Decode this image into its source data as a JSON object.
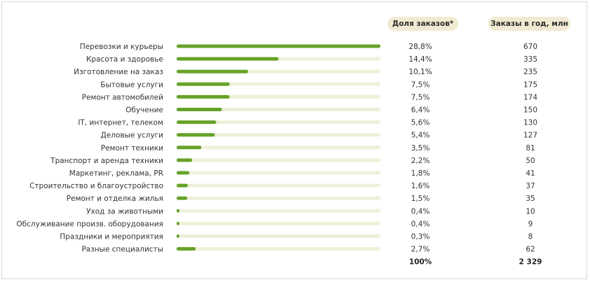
{
  "header": {
    "share_label": "Доля заказов*",
    "orders_label": "Заказы в год, млн"
  },
  "chart_data": {
    "type": "bar",
    "orientation": "horizontal",
    "categories": [
      "Перевозки и курьеры",
      "Красота и здоровье",
      "Изготовление на заказ",
      "Бытовые услуги",
      "Ремонт автомобилей",
      "Обучение",
      "IT, интернет, телеком",
      "Деловые услуги",
      "Ремонт техники",
      "Транспорт и аренда техники",
      "Маркетинг, реклама, PR",
      "Строительство и благоустройство",
      "Ремонт и отделка жилья",
      "Уход за животными",
      "Обслуживание произв. оборудования",
      "Праздники и мероприятия",
      "Разные специалисты"
    ],
    "values": [
      28.8,
      14.4,
      10.1,
      7.5,
      7.5,
      6.4,
      5.6,
      5.4,
      3.5,
      2.2,
      1.8,
      1.6,
      1.5,
      0.4,
      0.4,
      0.3,
      2.7
    ],
    "share_labels": [
      "28,8%",
      "14,4%",
      "10,1%",
      "7,5%",
      "7,5%",
      "6,4%",
      "5,6%",
      "5,4%",
      "3,5%",
      "2,2%",
      "1,8%",
      "1,6%",
      "1,5%",
      "0,4%",
      "0,4%",
      "0,3%",
      "2,7%"
    ],
    "orders_labels": [
      "670",
      "335",
      "235",
      "175",
      "174",
      "150",
      "130",
      "127",
      "81",
      "50",
      "41",
      "37",
      "35",
      "10",
      "9",
      "8",
      "62"
    ],
    "total_share": "100%",
    "total_orders": "2 329",
    "xlim": [
      0,
      28.8
    ],
    "colors": {
      "bar": "#66a32a",
      "track": "#eef0d8",
      "pill": "#f1ead2"
    }
  }
}
